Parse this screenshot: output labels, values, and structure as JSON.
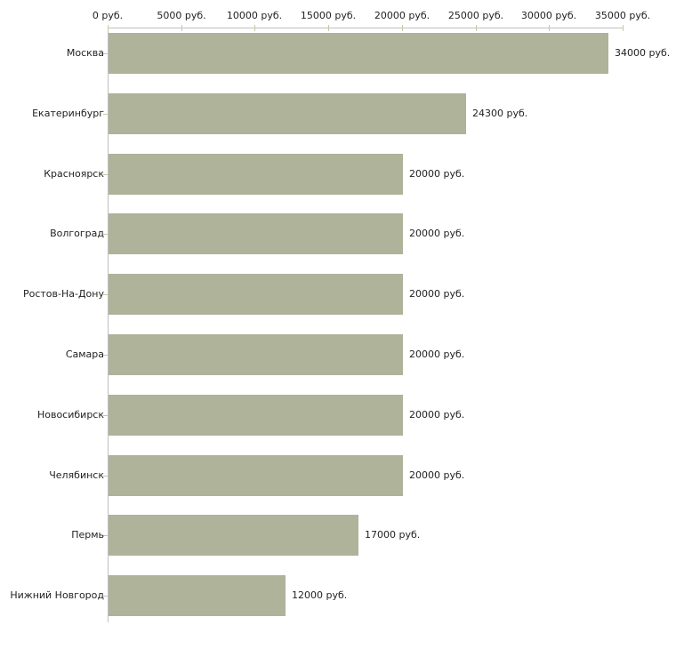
{
  "chart_data": {
    "type": "bar",
    "orientation": "horizontal",
    "title": "",
    "xlabel": "",
    "ylabel": "",
    "unit": "руб.",
    "xlim": [
      0,
      35000
    ],
    "grid": false,
    "legend": null,
    "categories": [
      "Москва",
      "Екатеринбург",
      "Красноярск",
      "Волгоград",
      "Ростов-На-Дону",
      "Самара",
      "Новосибирск",
      "Челябинск",
      "Пермь",
      "Нижний Новгород"
    ],
    "values": [
      34000,
      24300,
      20000,
      20000,
      20000,
      20000,
      20000,
      20000,
      17000,
      12000
    ],
    "value_labels": [
      "34000 руб.",
      "24300 руб.",
      "20000 руб.",
      "20000 руб.",
      "20000 руб.",
      "20000 руб.",
      "20000 руб.",
      "20000 руб.",
      "17000 руб.",
      "12000 руб."
    ],
    "x_tick_values": [
      0,
      5000,
      10000,
      15000,
      20000,
      25000,
      30000,
      35000
    ],
    "x_tick_labels": [
      "0 руб.",
      "5000 руб.",
      "10000 руб.",
      "15000 руб.",
      "20000 руб.",
      "25000 руб.",
      "30000 руб.",
      "35000 руб."
    ],
    "colors": {
      "bar": "#aeb39a",
      "axis_line": "#c0c0c0",
      "tick_mark": "#c8c8a0",
      "text": "#222222",
      "background": "#ffffff"
    }
  }
}
